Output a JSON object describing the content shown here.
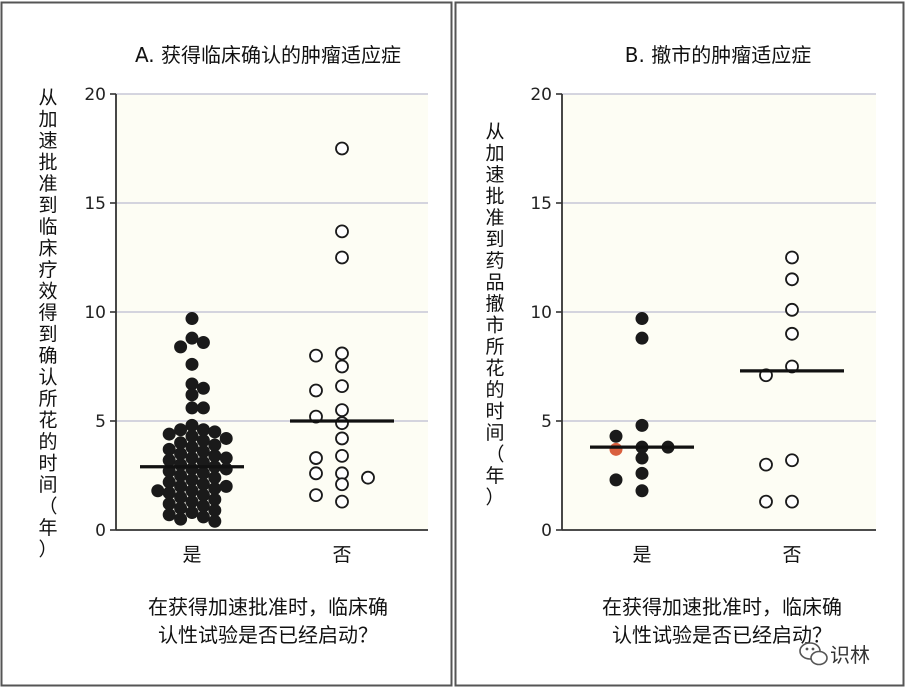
{
  "colors": {
    "frame": "#555555",
    "plot_bg": "#fdfdf4",
    "grid": "#c7c7d6",
    "axis": "#333333",
    "marker": "#1a1a1a",
    "median": "#111111",
    "highlight": "#d9603f"
  },
  "watermark": {
    "icon": "wechat-icon",
    "text": "识林"
  },
  "chart_data": [
    {
      "type": "scatter",
      "title": "A. 获得临床确认的肿瘤适应症",
      "ylabel": "从加速批准到临床疗效得到确认所花的时间（年）",
      "xlabel": "在获得加速批准时，临床确认性试验是否已经启动？",
      "categories": [
        "是",
        "否"
      ],
      "ylim": [
        0,
        20
      ],
      "yticks": [
        0,
        5,
        10,
        15,
        20
      ],
      "grid": true,
      "series": [
        {
          "category": "是",
          "marker": "filled",
          "median": 2.9,
          "values": [
            9.7,
            8.8,
            8.6,
            8.4,
            7.6,
            6.7,
            6.5,
            6.2,
            5.6,
            5.6,
            4.8,
            4.6,
            4.6,
            4.5,
            4.4,
            4.3,
            4.2,
            4.1,
            4.0,
            3.9,
            3.8,
            3.7,
            3.6,
            3.5,
            3.4,
            3.3,
            3.3,
            3.2,
            3.1,
            3.0,
            2.9,
            2.8,
            2.8,
            2.7,
            2.6,
            2.5,
            2.4,
            2.3,
            2.2,
            2.1,
            2.0,
            2.0,
            1.9,
            1.8,
            1.8,
            1.7,
            1.6,
            1.5,
            1.4,
            1.3,
            1.2,
            1.1,
            1.0,
            0.9,
            0.8,
            0.7,
            0.6,
            0.5,
            0.4
          ]
        },
        {
          "category": "否",
          "marker": "open",
          "median": 5.0,
          "values": [
            17.5,
            13.7,
            12.5,
            8.1,
            8.0,
            7.5,
            6.6,
            6.4,
            5.5,
            5.2,
            4.9,
            4.2,
            3.4,
            3.3,
            2.6,
            2.6,
            2.4,
            2.1,
            1.6,
            1.3
          ]
        }
      ]
    },
    {
      "type": "scatter",
      "title": "B. 撤市的肿瘤适应症",
      "ylabel": "从加速批准到药品撤市所花的时间（年）",
      "xlabel": "在获得加速批准时，临床确认性试验是否已经启动？",
      "categories": [
        "是",
        "否"
      ],
      "ylim": [
        0,
        20
      ],
      "yticks": [
        0,
        5,
        10,
        15,
        20
      ],
      "grid": true,
      "series": [
        {
          "category": "是",
          "marker": "filled",
          "median": 3.8,
          "values": [
            9.7,
            8.8,
            4.8,
            4.3,
            3.8,
            3.8,
            3.7,
            3.3,
            2.6,
            2.3,
            1.8
          ],
          "highlight_value": 3.7
        },
        {
          "category": "否",
          "marker": "open",
          "median": 7.3,
          "values": [
            12.5,
            11.5,
            10.1,
            9.0,
            7.5,
            7.1,
            3.2,
            3.0,
            1.3,
            1.3
          ]
        }
      ]
    }
  ]
}
